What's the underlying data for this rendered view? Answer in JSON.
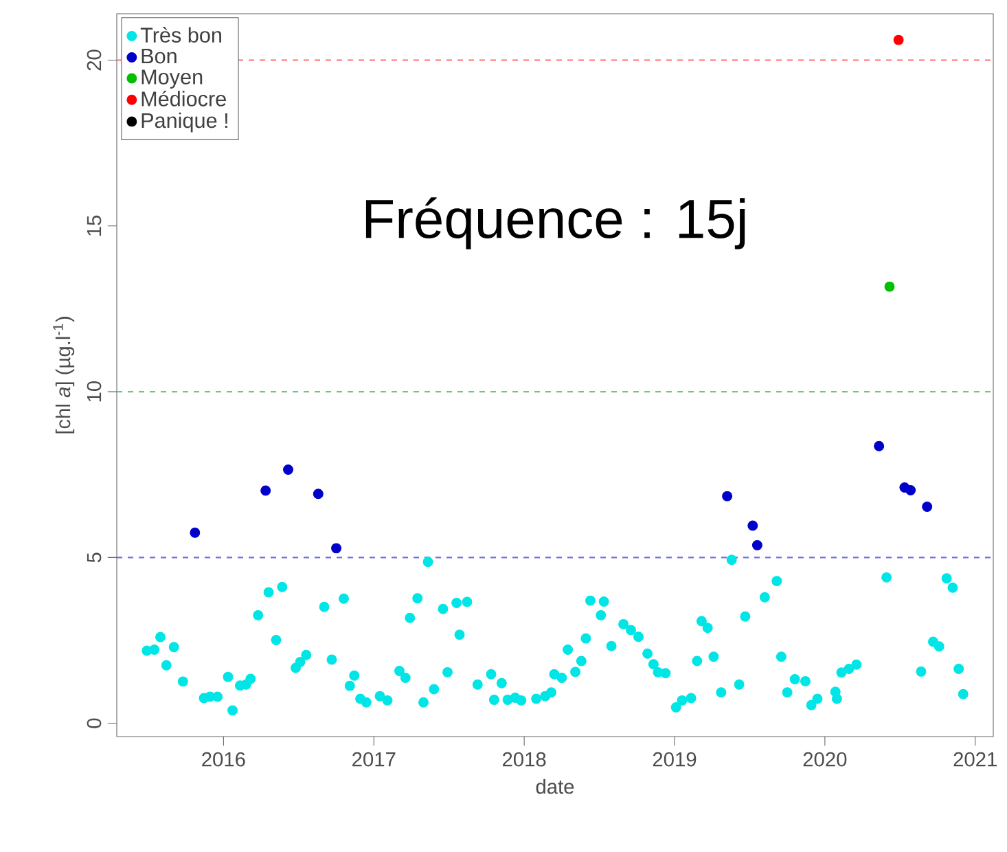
{
  "chart_data": {
    "type": "scatter",
    "xlabel": "date",
    "ylabel": "[chl *a*]  (µg.l$^{-1}$)",
    "annotations": [
      "Fréquence : 15j"
    ],
    "xlim": [
      2015.29,
      2021.12
    ],
    "xticks": [
      2016,
      2017,
      2018,
      2019,
      2020,
      2021
    ],
    "ylim": [
      -0.4,
      21.4
    ],
    "yticks": [
      0,
      5,
      10,
      15,
      20
    ],
    "legend": "top left",
    "marker": "circle",
    "series": [
      {
        "name": "Très bon",
        "color": "#00e5e5",
        "x": [
          2015.49,
          2015.54,
          2015.58,
          2015.62,
          2015.67,
          2015.73,
          2015.87,
          2015.91,
          2015.96,
          2016.03,
          2016.06,
          2016.11,
          2016.15,
          2016.18,
          2016.23,
          2016.3,
          2016.35,
          2016.39,
          2016.48,
          2016.51,
          2016.55,
          2016.67,
          2016.72,
          2016.8,
          2016.84,
          2016.87,
          2016.91,
          2016.95,
          2017.04,
          2017.09,
          2017.17,
          2017.21,
          2017.24,
          2017.29,
          2017.33,
          2017.36,
          2017.4,
          2017.46,
          2017.49,
          2017.55,
          2017.57,
          2017.62,
          2017.69,
          2017.78,
          2017.8,
          2017.85,
          2017.89,
          2017.94,
          2017.98,
          2018.08,
          2018.14,
          2018.18,
          2018.2,
          2018.25,
          2018.29,
          2018.34,
          2018.38,
          2018.41,
          2018.44,
          2018.51,
          2018.53,
          2018.58,
          2018.66,
          2018.71,
          2018.76,
          2018.82,
          2018.86,
          2018.89,
          2018.94,
          2019.01,
          2019.05,
          2019.11,
          2019.15,
          2019.18,
          2019.22,
          2019.26,
          2019.31,
          2019.38,
          2019.43,
          2019.47,
          2019.6,
          2019.68,
          2019.71,
          2019.75,
          2019.8,
          2019.87,
          2019.91,
          2019.95,
          2020.07,
          2020.08,
          2020.11,
          2020.16,
          2020.21,
          2020.41,
          2020.64,
          2020.72,
          2020.76,
          2020.81,
          2020.85,
          2020.89,
          2020.92
        ],
        "values": [
          2.19,
          2.22,
          2.6,
          1.75,
          2.3,
          1.26,
          0.76,
          0.8,
          0.8,
          1.4,
          0.39,
          1.14,
          1.17,
          1.34,
          3.26,
          3.95,
          2.51,
          4.11,
          1.67,
          1.85,
          2.06,
          3.51,
          1.92,
          3.76,
          1.13,
          1.44,
          0.74,
          0.63,
          0.82,
          0.69,
          1.58,
          1.37,
          3.18,
          3.77,
          0.63,
          4.87,
          1.03,
          3.45,
          1.54,
          3.63,
          2.67,
          3.66,
          1.17,
          1.48,
          0.71,
          1.21,
          0.71,
          0.77,
          0.69,
          0.74,
          0.82,
          0.93,
          1.48,
          1.37,
          2.22,
          1.55,
          1.88,
          2.56,
          3.7,
          3.26,
          3.67,
          2.33,
          2.99,
          2.81,
          2.61,
          2.1,
          1.78,
          1.54,
          1.51,
          0.48,
          0.69,
          0.76,
          1.88,
          3.08,
          2.88,
          2.01,
          0.93,
          4.93,
          1.17,
          3.22,
          3.8,
          4.29,
          2.01,
          0.93,
          1.33,
          1.27,
          0.55,
          0.74,
          0.95,
          0.74,
          1.53,
          1.64,
          1.77,
          4.4,
          1.56,
          2.46,
          2.32,
          4.37,
          4.09,
          1.64,
          0.88
        ]
      },
      {
        "name": "Bon",
        "color": "#0000cc",
        "x": [
          2015.81,
          2016.28,
          2016.43,
          2016.63,
          2016.75,
          2019.35,
          2019.52,
          2019.55,
          2020.36,
          2020.53,
          2020.57,
          2020.68
        ],
        "values": [
          5.75,
          7.02,
          7.65,
          6.92,
          5.28,
          6.85,
          5.96,
          5.37,
          8.36,
          7.11,
          7.03,
          6.53
        ]
      },
      {
        "name": "Moyen",
        "color": "#00c000",
        "x": [
          2020.43
        ],
        "values": [
          13.17
        ]
      },
      {
        "name": "Médiocre",
        "color": "#ff0000",
        "x": [
          2020.49
        ],
        "values": [
          20.61
        ]
      },
      {
        "name": "Panique !",
        "color": "#000000"
      }
    ],
    "ref_lines": [
      {
        "axis": "y",
        "value": 20,
        "color": "#ff7070",
        "line_style": "dashed"
      },
      {
        "axis": "y",
        "value": 10,
        "color": "#70c870",
        "line_style": "dashed"
      },
      {
        "axis": "y",
        "value": 5,
        "color": "#7070e0",
        "line_style": "dashed"
      }
    ]
  }
}
